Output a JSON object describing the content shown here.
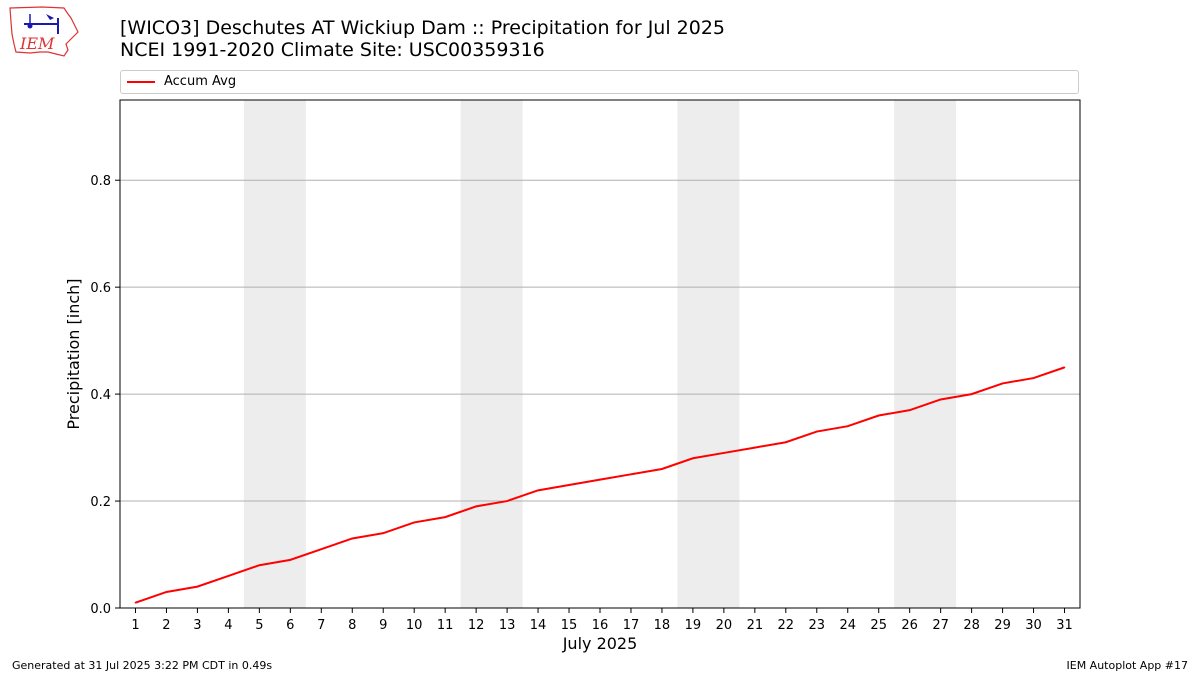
{
  "header": {
    "title_line1": "[WICO3] Deschutes  AT Wickiup Dam :: Precipitation for Jul 2025",
    "title_line2": "NCEI 1991-2020 Climate Site: USC00359316"
  },
  "logo": {
    "text": "IEM",
    "icon": "iem-logo-icon"
  },
  "footer": {
    "generated": "Generated at 31 Jul 2025 3:22 PM CDT in 0.49s",
    "app": "IEM Autoplot App #17"
  },
  "colors": {
    "line": "#ff0000",
    "weekend_band": "#ededed",
    "grid": "#b0b0b0"
  },
  "chart_data": {
    "type": "line",
    "title": "[WICO3] Deschutes  AT Wickiup Dam :: Precipitation for Jul 2025",
    "subtitle": "NCEI 1991-2020 Climate Site: USC00359316",
    "xlabel": "July 2025",
    "ylabel": "Precipitation [inch]",
    "x": [
      1,
      2,
      3,
      4,
      5,
      6,
      7,
      8,
      9,
      10,
      11,
      12,
      13,
      14,
      15,
      16,
      17,
      18,
      19,
      20,
      21,
      22,
      23,
      24,
      25,
      26,
      27,
      28,
      29,
      30,
      31
    ],
    "x_tick_labels": [
      "1",
      "2",
      "3",
      "4",
      "5",
      "6",
      "7",
      "8",
      "9",
      "10",
      "11",
      "12",
      "13",
      "14",
      "15",
      "16",
      "17",
      "18",
      "19",
      "20",
      "21",
      "22",
      "23",
      "24",
      "25",
      "26",
      "27",
      "28",
      "29",
      "30",
      "31"
    ],
    "y_ticks": [
      0.0,
      0.2,
      0.4,
      0.6,
      0.8
    ],
    "y_tick_labels": [
      "0.0",
      "0.2",
      "0.4",
      "0.6",
      "0.8"
    ],
    "xlim": [
      0.5,
      31.5
    ],
    "ylim": [
      0,
      0.95
    ],
    "grid": "horizontal",
    "legend_position": "top",
    "shaded_bands": [
      [
        4.5,
        6.5
      ],
      [
        11.5,
        13.5
      ],
      [
        18.5,
        20.5
      ],
      [
        25.5,
        27.5
      ]
    ],
    "series": [
      {
        "name": "Accum Avg",
        "color": "#ff0000",
        "values": [
          0.01,
          0.03,
          0.04,
          0.06,
          0.08,
          0.09,
          0.11,
          0.13,
          0.14,
          0.16,
          0.17,
          0.19,
          0.2,
          0.22,
          0.23,
          0.24,
          0.25,
          0.26,
          0.28,
          0.29,
          0.3,
          0.31,
          0.33,
          0.34,
          0.36,
          0.37,
          0.39,
          0.4,
          0.42,
          0.43,
          0.45
        ]
      }
    ]
  }
}
